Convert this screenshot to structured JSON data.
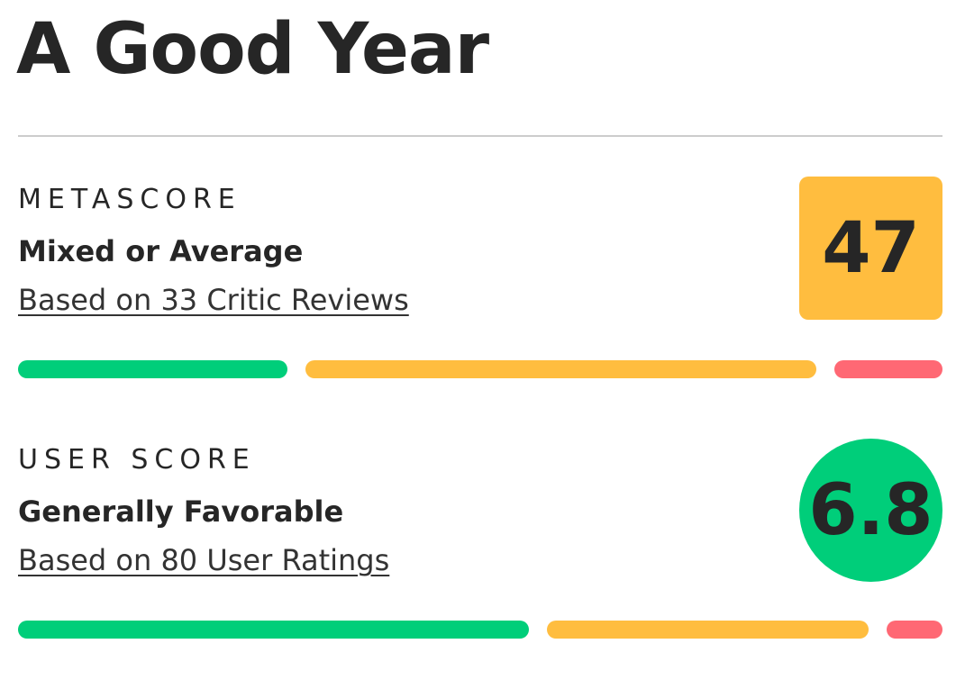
{
  "title": "A Good Year",
  "sections": [
    {
      "label": "METASCORE",
      "score": 47,
      "verdict": "Mixed or Average",
      "basis": "Based on 33 Critic Reviews",
      "distribution": [
        10,
        19,
        4
      ]
    },
    {
      "label": "USER SCORE",
      "score": 6.8,
      "verdict": "Generally Favorable",
      "basis": "Based on 80 User Ratings",
      "distribution": [
        46,
        29,
        5
      ]
    }
  ]
}
